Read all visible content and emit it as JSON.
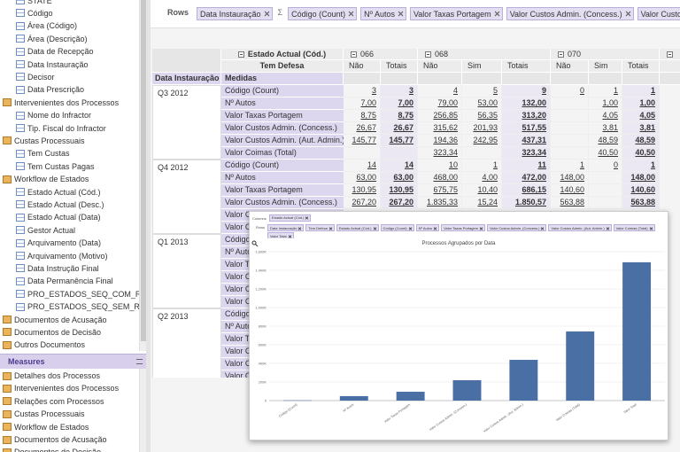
{
  "sidebar": {
    "dimensions": [
      {
        "label": "STATE",
        "kind": "field"
      },
      {
        "label": "Código",
        "kind": "field"
      },
      {
        "label": "Área (Código)",
        "kind": "field"
      },
      {
        "label": "Área (Descrição)",
        "kind": "field"
      },
      {
        "label": "Data de Recepção",
        "kind": "field"
      },
      {
        "label": "Data Instauração",
        "kind": "field"
      },
      {
        "label": "Decisor",
        "kind": "field"
      },
      {
        "label": "Data Prescrição",
        "kind": "field"
      },
      {
        "label": "Intervenientes dos Processos",
        "kind": "folder"
      },
      {
        "label": "Nome do Infractor",
        "kind": "field"
      },
      {
        "label": "Tip. Fiscal do Infractor",
        "kind": "field"
      },
      {
        "label": "Custas Processuais",
        "kind": "folder"
      },
      {
        "label": "Tem Custas",
        "kind": "field"
      },
      {
        "label": "Tem Custas Pagas",
        "kind": "field"
      },
      {
        "label": "Workflow de Estados",
        "kind": "folder"
      },
      {
        "label": "Estado Actual (Cód.)",
        "kind": "field"
      },
      {
        "label": "Estado Actual (Desc.)",
        "kind": "field"
      },
      {
        "label": "Estado Actual (Data)",
        "kind": "field"
      },
      {
        "label": "Gestor Actual",
        "kind": "field"
      },
      {
        "label": "Arquivamento (Data)",
        "kind": "field"
      },
      {
        "label": "Arquivamento (Motivo)",
        "kind": "field"
      },
      {
        "label": "Data Instrução Final",
        "kind": "field"
      },
      {
        "label": "Data Permanência Final",
        "kind": "field"
      },
      {
        "label": "PRO_ESTADOS_SEQ_COM_REP",
        "kind": "field"
      },
      {
        "label": "PRO_ESTADOS_SEQ_SEM_REP",
        "kind": "field"
      },
      {
        "label": "Documentos de Acusação",
        "kind": "folder"
      },
      {
        "label": "Documentos de Decisão",
        "kind": "folder"
      },
      {
        "label": "Outros Documentos",
        "kind": "folder"
      }
    ],
    "measures_title": "Measures",
    "measures": [
      "Detalhes dos Processos",
      "Intervenientes dos Processos",
      "Relações com Processos",
      "Custas Processuais",
      "Workflow de Estados",
      "Documentos de Acusação",
      "Documentos de Decisão"
    ]
  },
  "rows_bar": {
    "label": "Rows",
    "chips": [
      "Data Instauração",
      "Σ",
      "Código (Count)",
      "Nº Autos",
      "Valor Taxas Portagem",
      "Valor Custos Admin. (Concess.)",
      "Valor Custos Admin. (Aut. Admin.)"
    ]
  },
  "pivot": {
    "col_field": "Estado Actual (Cód.)",
    "sub_field": "Tem Defesa",
    "row_header": "Data Instauração",
    "measures_header": "Medidas",
    "col_groups": [
      {
        "label": "066",
        "cols": [
          "Não",
          "Totais"
        ]
      },
      {
        "label": "068",
        "cols": [
          "Não",
          "Sim",
          "Totais"
        ]
      },
      {
        "label": "070",
        "cols": [
          "Não",
          "Sim",
          "Totais"
        ]
      }
    ],
    "groups": [
      {
        "label": "Q3 2012",
        "rows": [
          {
            "measure": "Código (Count)",
            "cells": [
              "3",
              "3",
              "4",
              "5",
              "9",
              "0",
              "1",
              "1"
            ]
          },
          {
            "measure": "Nº Autos",
            "cells": [
              "7,00",
              "7,00",
              "79,00",
              "53,00",
              "132,00",
              null,
              "1,00",
              "1,00"
            ]
          },
          {
            "measure": "Valor Taxas Portagem",
            "cells": [
              "8,75",
              "8,75",
              "256,85",
              "56,35",
              "313,20",
              null,
              "4,05",
              "4,05"
            ]
          },
          {
            "measure": "Valor Custos Admin. (Concess.)",
            "cells": [
              "26,67",
              "26,67",
              "315,62",
              "201,93",
              "517,55",
              null,
              "3,81",
              "3,81"
            ]
          },
          {
            "measure": "Valor Custos Admin. (Aut. Admin.)",
            "cells": [
              "145,77",
              "145,77",
              "194,36",
              "242,95",
              "437,31",
              null,
              "48,59",
              "48,59"
            ]
          },
          {
            "measure": "Valor Coimas (Total)",
            "cells": [
              null,
              null,
              "323,34",
              null,
              "323,34",
              null,
              "40,50",
              "40,50"
            ]
          }
        ]
      },
      {
        "label": "Q4 2012",
        "rows": [
          {
            "measure": "Código (Count)",
            "cells": [
              "14",
              "14",
              "10",
              "1",
              "11",
              "1",
              "0",
              "1"
            ]
          },
          {
            "measure": "Nº Autos",
            "cells": [
              "63,00",
              "63,00",
              "468,00",
              "4,00",
              "472,00",
              "148,00",
              null,
              "148,00"
            ]
          },
          {
            "measure": "Valor Taxas Portagem",
            "cells": [
              "130,95",
              "130,95",
              "675,75",
              "10,40",
              "686,15",
              "140,60",
              null,
              "140,60"
            ]
          },
          {
            "measure": "Valor Custos Admin. (Concess.)",
            "cells": [
              "267,20",
              "267,20",
              "1.835,33",
              "15,24",
              "1.850,57",
              "563,88",
              null,
              "563,88"
            ]
          },
          {
            "measure": "Valor Custos Admin. (Aut. Admin.)"
          },
          {
            "measure": "Valor Coimas (Total)"
          }
        ]
      },
      {
        "label": "Q1 2013",
        "rows": [
          {
            "measure": "Código (Count)"
          },
          {
            "measure": "Nº Autos"
          },
          {
            "measure": "Valor Taxas Portagem"
          },
          {
            "measure": "Valor Custos Admin. (Concess.)"
          },
          {
            "measure": "Valor Custos Admin. (Aut. Admin.)"
          },
          {
            "measure": "Valor Coimas (Total)"
          }
        ]
      },
      {
        "label": "Q2 2013",
        "rows": [
          {
            "measure": "Código (Count)"
          },
          {
            "measure": "Nº Autos"
          },
          {
            "measure": "Valor Taxas Portagem"
          },
          {
            "measure": "Valor Custos Admin. (Concess.)"
          },
          {
            "measure": "Valor Custos Admin. (Aut. Admin.)"
          },
          {
            "measure": "Valor Coimas (Total)"
          }
        ]
      }
    ]
  },
  "chart_panel": {
    "columns_label": "Columns",
    "columns_chips": [
      "Estado Actual (Cód.)"
    ],
    "rows_label": "Rows",
    "rows_chips": [
      "Data Instauração",
      "Tem Defesa",
      "Estado Actual (Cód.)",
      "Código (Count)",
      "Nº Autos",
      "Valor Taxas Portagem",
      "Valor Custos Admin. (Concess.)",
      "Valor Custos Admin. (Aut. Admin.)",
      "Valor Coimas (Total)",
      "Valor Total"
    ]
  },
  "chart_data": {
    "type": "bar",
    "title": "Processos Agrupados por Data",
    "categories": [
      "Código (Count)",
      "Nº Autos",
      "Valor Taxas Portagem",
      "Valor Custos Admin. (Concess.)",
      "Valor Custos Admin. (Aut. Admin.)",
      "Valor Coimas (Total)",
      "Valor Total"
    ],
    "values": [
      3000,
      48000,
      95000,
      219000,
      438000,
      743000,
      1486000
    ],
    "color": "#4a6fa5",
    "ylim": [
      0,
      1600000
    ],
    "yticks": [
      0,
      {
        "value": 200000,
        "label": "200K"
      },
      {
        "value": 400000,
        "label": "400K"
      },
      {
        "value": 600000,
        "label": "600K"
      },
      {
        "value": 800000,
        "label": "800K"
      },
      {
        "value": 1000000,
        "label": "1,000K"
      },
      {
        "value": 1200000,
        "label": "1,200K"
      },
      {
        "value": 1400000,
        "label": "1,400K"
      },
      {
        "value": 1600000,
        "label": "1,600K"
      }
    ],
    "grid": true
  }
}
